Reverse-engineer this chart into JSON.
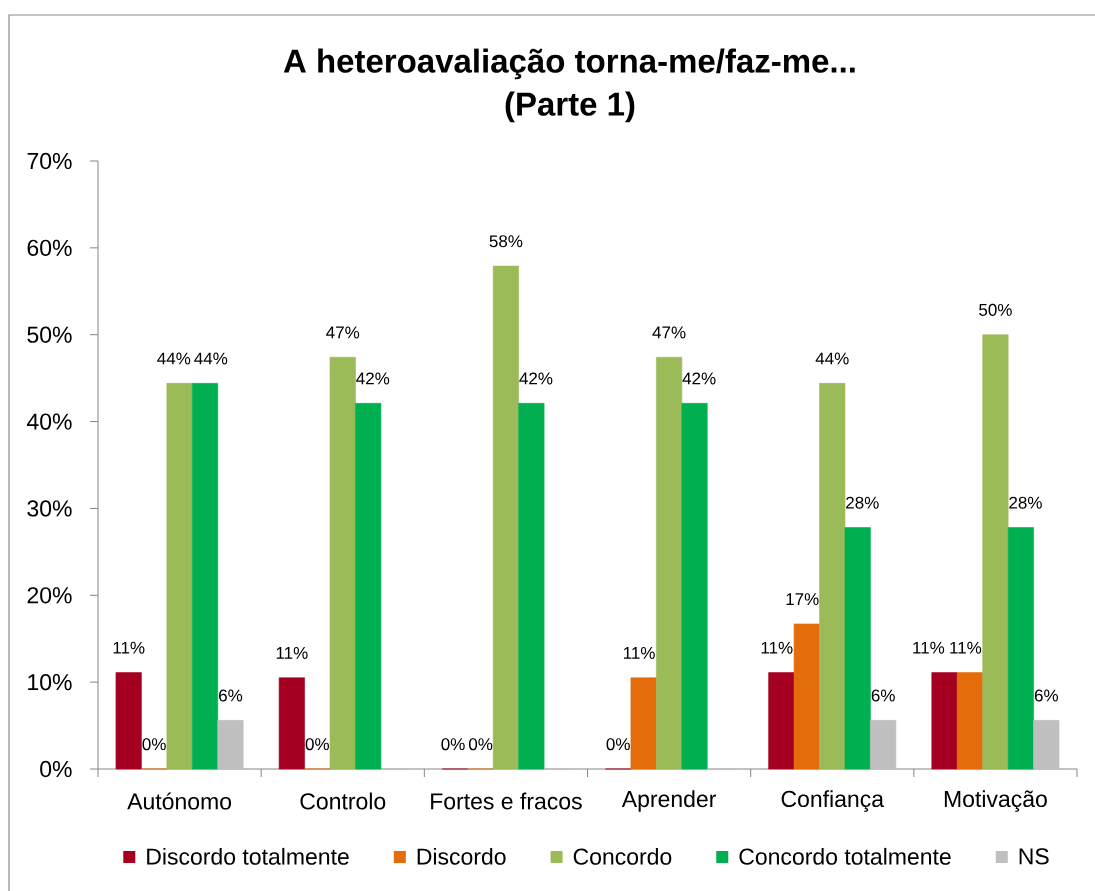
{
  "chart_data": {
    "type": "bar",
    "title": "A heteroavaliação torna-me/faz-me... (Parte 1)",
    "categories": [
      "Autónomo",
      "Controlo",
      "Fortes e fracos",
      "Aprender",
      "Confiança",
      "Motivação"
    ],
    "series": [
      {
        "name": "Discordo totalmente",
        "color": "#a50021",
        "values": [
          11.1,
          10.5,
          0,
          0,
          11.1,
          11.1
        ],
        "value_labels": [
          "11%",
          "11%",
          "0%",
          "0%",
          "11%",
          "11%"
        ]
      },
      {
        "name": "Discordo",
        "color": "#e46c0a",
        "values": [
          0,
          0,
          0,
          10.5,
          16.7,
          11.1
        ],
        "value_labels": [
          "0%",
          "0%",
          "0%",
          "11%",
          "17%",
          "11%"
        ]
      },
      {
        "name": "Concordo",
        "color": "#9bbb59",
        "values": [
          44.4,
          47.4,
          57.9,
          47.4,
          44.4,
          50
        ],
        "value_labels": [
          "44%",
          "47%",
          "58%",
          "47%",
          "44%",
          "50%"
        ]
      },
      {
        "name": "Concordo totalmente",
        "color": "#00b050",
        "values": [
          44.4,
          42.1,
          42.1,
          42.1,
          27.8,
          27.8
        ],
        "value_labels": [
          "44%",
          "42%",
          "42%",
          "42%",
          "28%",
          "28%"
        ]
      },
      {
        "name": "NS",
        "color": "#bfbfbf",
        "values": [
          5.6,
          0,
          0,
          0,
          5.6,
          5.6
        ],
        "value_labels": [
          "6%",
          null,
          null,
          null,
          "6%",
          "6%"
        ]
      }
    ],
    "ylim": [
      0,
      70
    ],
    "yticks": [
      {
        "value": 0,
        "label": "0%"
      },
      {
        "value": 10,
        "label": "10%"
      },
      {
        "value": 20,
        "label": "20%"
      },
      {
        "value": 30,
        "label": "30%"
      },
      {
        "value": 40,
        "label": "40%"
      },
      {
        "value": 50,
        "label": "50%"
      },
      {
        "value": 60,
        "label": "60%"
      },
      {
        "value": 70,
        "label": "70%"
      }
    ],
    "legend": "bottom"
  }
}
